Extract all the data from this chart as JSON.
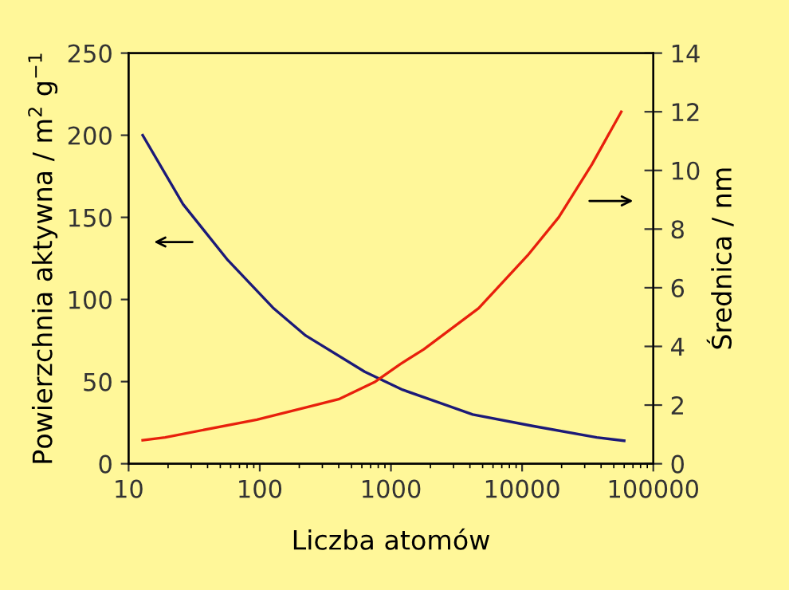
{
  "chart_data": {
    "type": "line",
    "xlabel": "Liczba atomów",
    "ylabel": "Powierzchnia aktywna / m$^{2}$ g$^{−1}$",
    "y2label": "Średnica / nm",
    "log": "x",
    "xlim": [
      10,
      100000
    ],
    "xticks": [
      10,
      100,
      1000,
      10000,
      100000
    ],
    "ylim": [
      0,
      250
    ],
    "yticks": [
      0,
      50,
      100,
      150,
      200,
      250
    ],
    "y2lim": [
      0,
      14
    ],
    "y2ticks": [
      0,
      2,
      4,
      6,
      8,
      10,
      12,
      14
    ],
    "grid": false,
    "legend": false,
    "series": [
      {
        "color": "#1c1a78",
        "x": [
          12.8,
          26,
          57,
          126,
          224,
          631,
          1230,
          4200,
          12000,
          37000,
          60000
        ],
        "values": [
          200,
          158,
          124,
          95,
          78,
          56,
          45,
          30,
          23,
          16,
          14
        ]
      },
      {
        "color": "#e8200c",
        "axis": "y2",
        "x": [
          12.8,
          19,
          95,
          400,
          760,
          1180,
          1780,
          4660,
          11000,
          19000,
          34000,
          57000
        ],
        "values": [
          0.8,
          0.9,
          1.5,
          2.2,
          2.8,
          3.4,
          3.9,
          5.3,
          7.1,
          8.4,
          10.2,
          12.0
        ]
      }
    ]
  }
}
